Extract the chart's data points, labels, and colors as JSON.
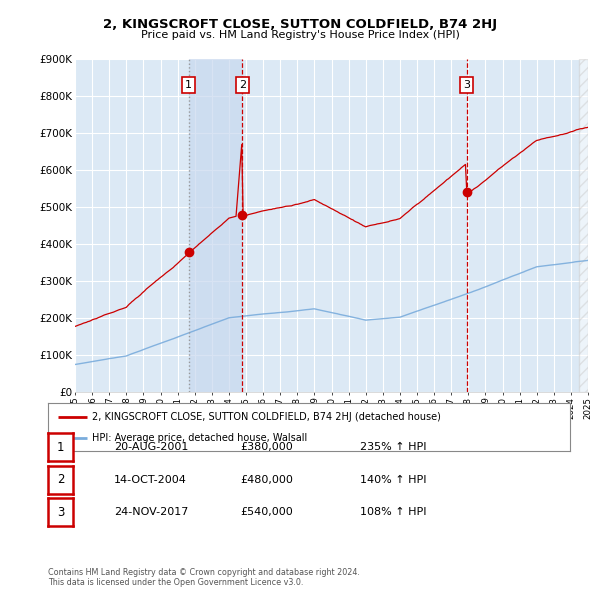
{
  "title": "2, KINGSCROFT CLOSE, SUTTON COLDFIELD, B74 2HJ",
  "subtitle": "Price paid vs. HM Land Registry's House Price Index (HPI)",
  "ylabel_ticks": [
    "£0",
    "£100K",
    "£200K",
    "£300K",
    "£400K",
    "£500K",
    "£600K",
    "£700K",
    "£800K",
    "£900K"
  ],
  "ylim": [
    0,
    900000
  ],
  "ytick_vals": [
    0,
    100000,
    200000,
    300000,
    400000,
    500000,
    600000,
    700000,
    800000,
    900000
  ],
  "bg_color": "#dce9f5",
  "grid_color": "#ffffff",
  "line_color_red": "#cc0000",
  "line_color_blue": "#7aacdc",
  "legend_label_red": "2, KINGSCROFT CLOSE, SUTTON COLDFIELD, B74 2HJ (detached house)",
  "legend_label_blue": "HPI: Average price, detached house, Walsall",
  "sale_points": [
    {
      "price": 380000,
      "label": "1",
      "x_year": 2001.64,
      "vline_color": "#aaaaaa",
      "vline_style": "dotted"
    },
    {
      "price": 480000,
      "label": "2",
      "x_year": 2004.79,
      "vline_color": "#cc0000",
      "vline_style": "dashed"
    },
    {
      "price": 540000,
      "label": "3",
      "x_year": 2017.9,
      "vline_color": "#cc0000",
      "vline_style": "dashed"
    }
  ],
  "table_rows": [
    {
      "num": "1",
      "date": "20-AUG-2001",
      "price": "£380,000",
      "hpi": "235% ↑ HPI"
    },
    {
      "num": "2",
      "date": "14-OCT-2004",
      "price": "£480,000",
      "hpi": "140% ↑ HPI"
    },
    {
      "num": "3",
      "date": "24-NOV-2017",
      "price": "£540,000",
      "hpi": "108% ↑ HPI"
    }
  ],
  "footer": "Contains HM Land Registry data © Crown copyright and database right 2024.\nThis data is licensed under the Open Government Licence v3.0.",
  "xmin": 1995,
  "xmax": 2025,
  "highlight_x1": 2001.64,
  "highlight_x2": 2004.79
}
